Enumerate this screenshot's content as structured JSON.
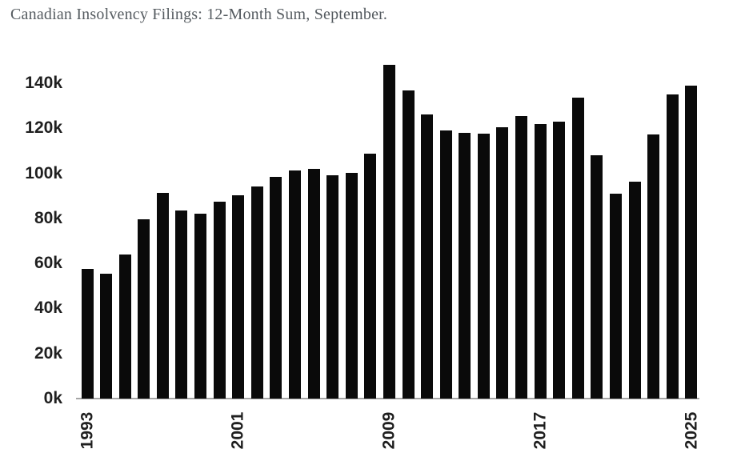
{
  "title": "Canadian Insolvency Filings: 12-Month Sum, September.",
  "colors": {
    "bar": "#0a0a0a",
    "axis_line": "#a6a6a6",
    "tick_label": "#1f1f1f",
    "title": "#565c61",
    "background": "#ffffff"
  },
  "chart_data": {
    "type": "bar",
    "title": "Canadian Insolvency Filings: 12-Month Sum, September.",
    "xlabel": "",
    "ylabel": "",
    "unit": "thousands of filings",
    "grid": false,
    "legend": "none",
    "ylim": [
      0,
      150
    ],
    "y_axis_ticks": [
      {
        "value": 0,
        "label": "0k"
      },
      {
        "value": 20,
        "label": "20k"
      },
      {
        "value": 40,
        "label": "40k"
      },
      {
        "value": 60,
        "label": "60k"
      },
      {
        "value": 80,
        "label": "80k"
      },
      {
        "value": 100,
        "label": "100k"
      },
      {
        "value": 120,
        "label": "120k"
      },
      {
        "value": 140,
        "label": "140k"
      }
    ],
    "x_axis_labeled_years": [
      1993,
      2001,
      2009,
      2017,
      2025
    ],
    "x_label_rotation_degrees": -90,
    "categories": [
      1993,
      1994,
      1995,
      1996,
      1997,
      1998,
      1999,
      2000,
      2001,
      2002,
      2003,
      2004,
      2005,
      2006,
      2007,
      2008,
      2009,
      2010,
      2011,
      2012,
      2013,
      2014,
      2015,
      2016,
      2017,
      2018,
      2019,
      2020,
      2021,
      2022,
      2023,
      2024,
      2025
    ],
    "values": [
      57.6,
      55.5,
      63.8,
      79.5,
      91.4,
      83.6,
      82.0,
      87.4,
      90.2,
      94.0,
      98.4,
      101.4,
      101.9,
      99.3,
      100.3,
      108.7,
      148.1,
      136.9,
      126.3,
      119.2,
      118.1,
      117.5,
      120.6,
      125.4,
      121.9,
      123.1,
      133.7,
      107.9,
      91.0,
      96.3,
      117.1,
      135.1,
      139.0
    ]
  }
}
